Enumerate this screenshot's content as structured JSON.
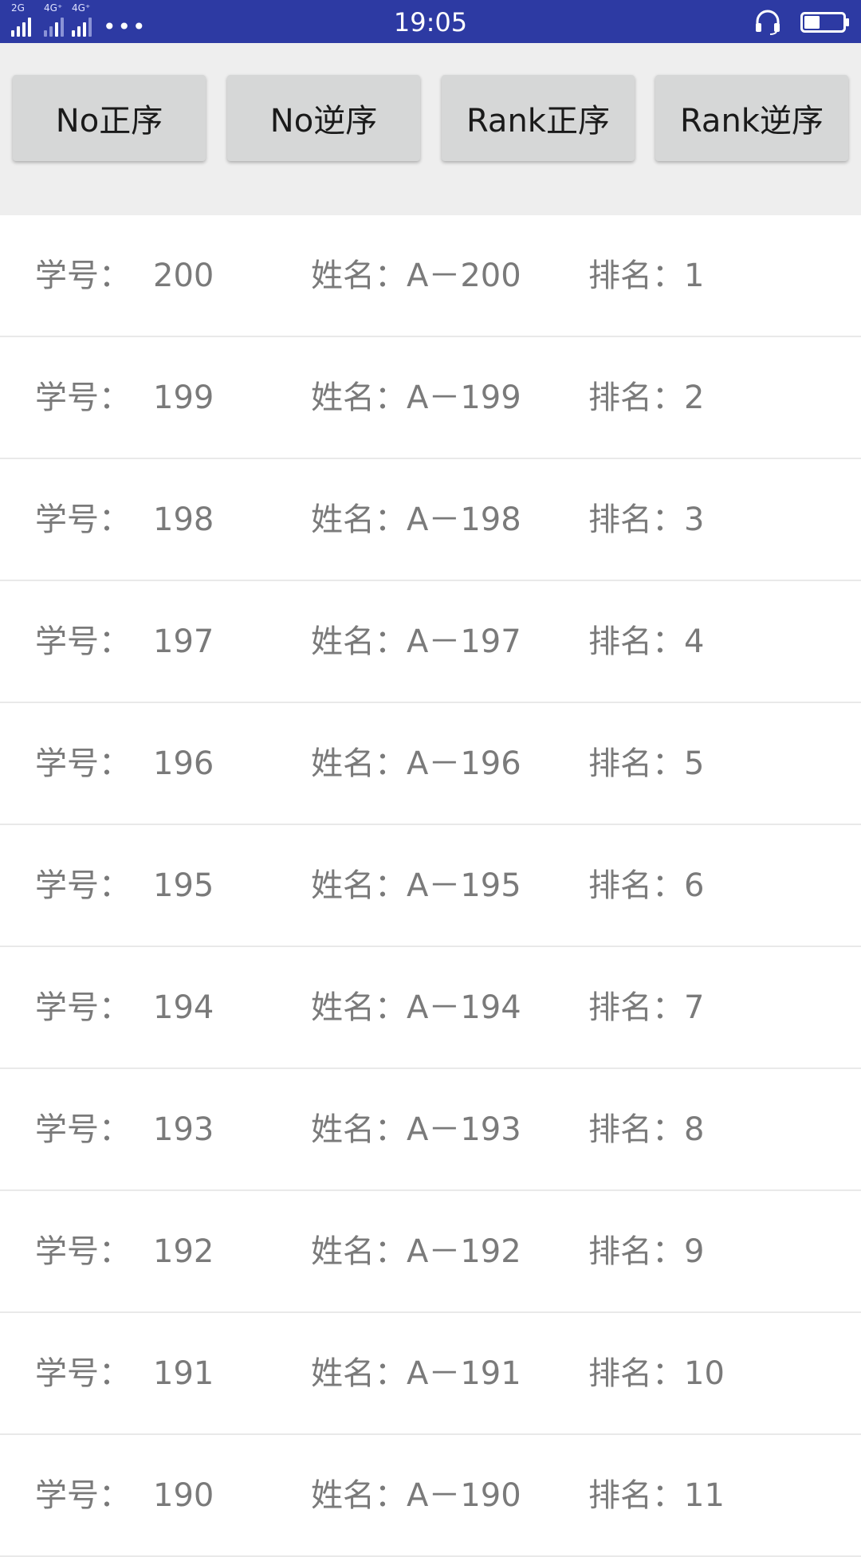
{
  "status_bar": {
    "time": "19:05",
    "signal1_label": "2G",
    "signal2_label": "4G⁺",
    "signal3_label": "4G⁺",
    "more": "•••",
    "headset_icon": "headset-icon",
    "battery_icon": "battery-icon",
    "battery_level": 0.4,
    "color": "#2d3aa3"
  },
  "toolbar": {
    "buttons": [
      {
        "label": "No正序"
      },
      {
        "label": "No逆序"
      },
      {
        "label": "Rank正序"
      },
      {
        "label": "Rank逆序"
      }
    ]
  },
  "list": {
    "no_label": "学号：",
    "name_label": "姓名：",
    "rank_label": "排名：",
    "rows": [
      {
        "no": "200",
        "name": "A－200",
        "rank": "1"
      },
      {
        "no": "199",
        "name": "A－199",
        "rank": "2"
      },
      {
        "no": "198",
        "name": "A－198",
        "rank": "3"
      },
      {
        "no": "197",
        "name": "A－197",
        "rank": "4"
      },
      {
        "no": "196",
        "name": "A－196",
        "rank": "5"
      },
      {
        "no": "195",
        "name": "A－195",
        "rank": "6"
      },
      {
        "no": "194",
        "name": "A－194",
        "rank": "7"
      },
      {
        "no": "193",
        "name": "A－193",
        "rank": "8"
      },
      {
        "no": "192",
        "name": "A－192",
        "rank": "9"
      },
      {
        "no": "191",
        "name": "A－191",
        "rank": "10"
      },
      {
        "no": "190",
        "name": "A－190",
        "rank": "11"
      }
    ]
  }
}
